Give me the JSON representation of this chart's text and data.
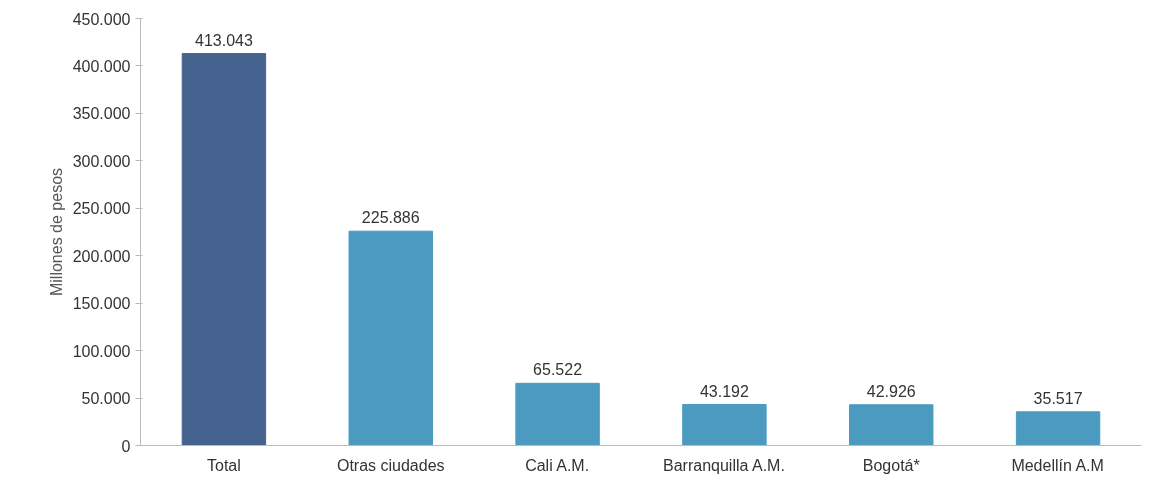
{
  "chart_data": {
    "type": "bar",
    "ylabel": "Millones de pesos",
    "categories": [
      "Total",
      "Otras ciudades",
      "Cali A.M.",
      "Barranquilla A.M.",
      "Bogotá*",
      "Medellín A.M"
    ],
    "values": [
      413043,
      225886,
      65522,
      43192,
      42926,
      35517
    ],
    "colors": [
      "#46628f",
      "#4a9bbf",
      "#4a9bbf",
      "#4a9bbf",
      "#4a9bbf",
      "#4a9bbf"
    ],
    "value_labels": [
      "413.043",
      "225.886",
      "65.522",
      "43.192",
      "42.926",
      "35.517"
    ],
    "ylim": [
      0,
      450000
    ],
    "yticks": [
      0,
      {
        "value": 50000,
        "label": "50.000"
      },
      {
        "value": 100000,
        "label": "100.000"
      },
      {
        "value": 150000,
        "label": "150.000"
      },
      {
        "value": 200000,
        "label": "200.000"
      },
      {
        "value": 250000,
        "label": "250.000"
      },
      {
        "value": 300000,
        "label": "300.000"
      },
      {
        "value": 350000,
        "label": "350.000"
      },
      {
        "value": 400000,
        "label": "400.000"
      },
      {
        "value": 450000,
        "label": "450.000"
      }
    ],
    "grid": false
  }
}
